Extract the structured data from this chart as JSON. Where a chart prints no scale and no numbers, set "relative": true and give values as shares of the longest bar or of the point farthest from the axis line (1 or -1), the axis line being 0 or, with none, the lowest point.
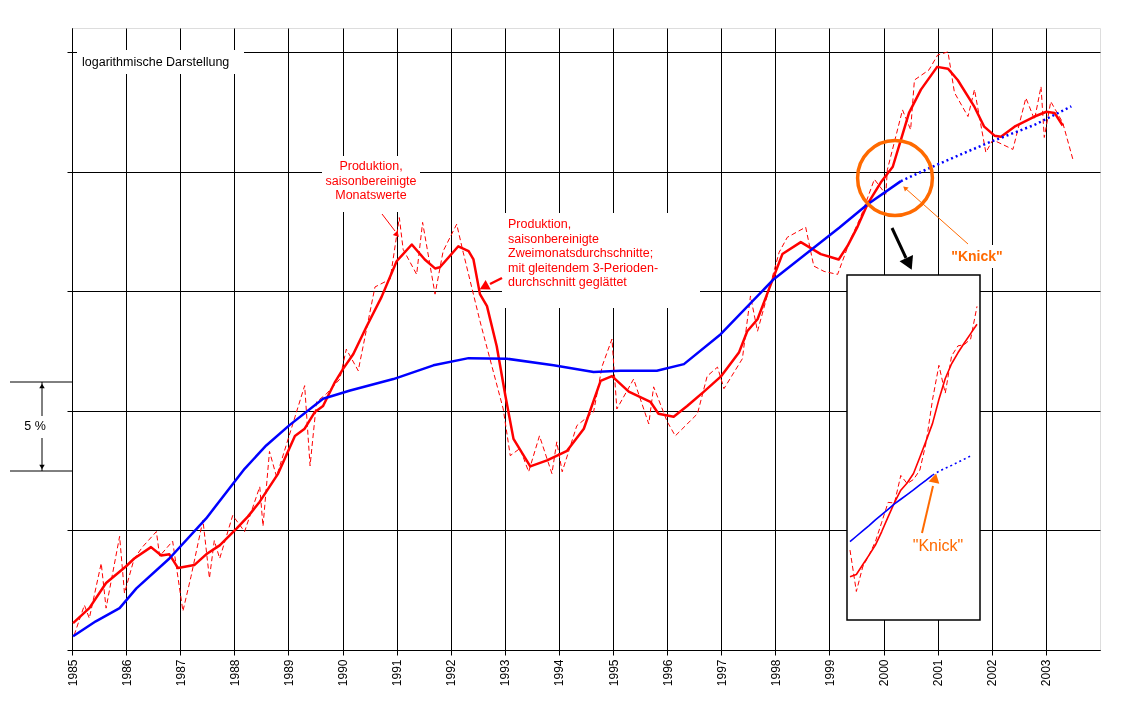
{
  "chart_data": [
    {
      "type": "line",
      "relative": true,
      "xlim": [
        1985,
        2004
      ],
      "xticks": [
        1985,
        1986,
        1987,
        1988,
        1989,
        1990,
        1991,
        1992,
        1993,
        1994,
        1995,
        1996,
        1997,
        1998,
        1999,
        2000,
        2001,
        2002,
        2003
      ],
      "grid": true,
      "tick_labels": "x",
      "annotations": [
        "logarithmische Darstellung",
        "5 %",
        "\"Knick\""
      ],
      "series": [
        {
          "name": "Produktion,\nsaisonbereinigte\nMonatswerte",
          "color": "#ff0000",
          "line_style": "dashed",
          "x": [
            1985.04,
            1985.23,
            1985.32,
            1985.54,
            1985.63,
            1985.88,
            1985.97,
            1986.15,
            1986.31,
            1986.56,
            1986.62,
            1986.86,
            1987.05,
            1987.2,
            1987.42,
            1987.54,
            1987.63,
            1987.73,
            1987.97,
            1988.19,
            1988.47,
            1988.53,
            1988.65,
            1988.78,
            1989.3,
            1989.4,
            1989.52,
            1989.7,
            1989.95,
            1990.07,
            1990.29,
            1990.6,
            1990.88,
            1991.05,
            1991.12,
            1991.37,
            1991.48,
            1991.71,
            1991.86,
            1992.11,
            1992.23,
            1992.54,
            1992.97,
            1993.1,
            1993.28,
            1993.44,
            1993.64,
            1993.87,
            1993.96,
            1994.06,
            1994.33,
            1994.64,
            1994.8,
            1994.98,
            1995.07,
            1995.38,
            1995.66,
            1995.75,
            1996.0,
            1996.15,
            1996.56,
            1996.74,
            1996.93,
            1997.05,
            1997.39,
            1997.54,
            1997.67,
            1998.07,
            1998.22,
            1998.56,
            1998.71,
            1998.9,
            1999.15,
            1999.39,
            1999.58,
            1999.83,
            2000.04,
            2000.07,
            2000.35,
            2000.5,
            2000.57,
            2000.84,
            2001.0,
            2001.19,
            2001.31,
            2001.56,
            2001.68,
            2001.89,
            2002.02,
            2002.39,
            2002.63,
            2002.79,
            2002.91,
            2002.97,
            2003.09,
            2003.31,
            2003.5
          ],
          "values": [
            0.025,
            0.075,
            0.053,
            0.145,
            0.07,
            0.19,
            0.095,
            0.153,
            0.173,
            0.198,
            0.157,
            0.182,
            0.065,
            0.123,
            0.217,
            0.12,
            0.183,
            0.153,
            0.225,
            0.198,
            0.273,
            0.207,
            0.332,
            0.29,
            0.442,
            0.308,
            0.415,
            0.428,
            0.453,
            0.503,
            0.467,
            0.607,
            0.62,
            0.723,
            0.67,
            0.628,
            0.715,
            0.595,
            0.667,
            0.712,
            0.665,
            0.55,
            0.403,
            0.325,
            0.337,
            0.298,
            0.358,
            0.295,
            0.348,
            0.298,
            0.375,
            0.398,
            0.475,
            0.52,
            0.403,
            0.453,
            0.378,
            0.44,
            0.382,
            0.358,
            0.395,
            0.458,
            0.473,
            0.437,
            0.487,
            0.592,
            0.533,
            0.665,
            0.69,
            0.707,
            0.642,
            0.633,
            0.628,
            0.687,
            0.725,
            0.787,
            0.762,
            0.803,
            0.903,
            0.87,
            0.953,
            0.97,
            0.995,
            1.0,
            0.932,
            0.892,
            0.937,
            0.832,
            0.853,
            0.837,
            0.923,
            0.887,
            0.942,
            0.857,
            0.917,
            0.882,
            0.82
          ]
        },
        {
          "name": "Produktion,\nsaisonbereinigte\nZweimonatsdurchschnitte;\nmit gleitendem 3-Perioden-\ndurchschnitt geglättet",
          "color": "#ff0000",
          "line_style": "solid",
          "x": [
            1985.02,
            1985.32,
            1985.63,
            1986.0,
            1986.15,
            1986.46,
            1986.65,
            1986.8,
            1986.96,
            1987.26,
            1987.48,
            1987.73,
            1988.04,
            1988.25,
            1988.47,
            1988.81,
            1989.12,
            1989.3,
            1989.49,
            1989.64,
            1989.86,
            1990.01,
            1990.2,
            1990.44,
            1990.72,
            1991.0,
            1991.28,
            1991.52,
            1991.71,
            1991.8,
            1992.14,
            1992.33,
            1992.42,
            1992.54,
            1992.67,
            1992.85,
            1993.01,
            1993.16,
            1993.47,
            1993.78,
            1994.15,
            1994.46,
            1994.77,
            1994.98,
            1995.29,
            1995.69,
            1995.84,
            1996.12,
            1996.37,
            1996.68,
            1996.99,
            1997.33,
            1997.48,
            1997.67,
            1997.88,
            1998.13,
            1998.47,
            1998.84,
            1999.17,
            1999.33,
            1999.52,
            1999.7,
            1999.95,
            2000.17,
            2000.32,
            2000.47,
            2000.69,
            2000.99,
            2001.19,
            2001.37,
            2001.68,
            2001.86,
            2002.05,
            2002.17,
            2002.42,
            2002.79,
            2003.01,
            2003.16,
            2003.31
          ],
          "values": [
            0.045,
            0.07,
            0.112,
            0.14,
            0.153,
            0.172,
            0.158,
            0.16,
            0.137,
            0.142,
            0.16,
            0.175,
            0.203,
            0.223,
            0.248,
            0.295,
            0.358,
            0.37,
            0.398,
            0.408,
            0.448,
            0.47,
            0.495,
            0.54,
            0.59,
            0.65,
            0.678,
            0.653,
            0.638,
            0.64,
            0.675,
            0.667,
            0.653,
            0.595,
            0.575,
            0.508,
            0.425,
            0.353,
            0.307,
            0.317,
            0.333,
            0.37,
            0.45,
            0.458,
            0.432,
            0.415,
            0.395,
            0.39,
            0.408,
            0.432,
            0.457,
            0.498,
            0.533,
            0.553,
            0.603,
            0.662,
            0.682,
            0.662,
            0.653,
            0.675,
            0.708,
            0.745,
            0.782,
            0.808,
            0.853,
            0.898,
            0.937,
            0.975,
            0.972,
            0.953,
            0.908,
            0.875,
            0.86,
            0.858,
            0.875,
            0.892,
            0.9,
            0.898,
            0.877
          ]
        },
        {
          "color": "#0000ff",
          "line_style": "solid",
          "x": [
            1985.02,
            1985.44,
            1985.88,
            1986.19,
            1986.8,
            1987.48,
            1988.19,
            1988.59,
            1989.02,
            1989.64,
            1990.14,
            1990.94,
            1991.68,
            1992.33,
            1993.04,
            1993.9,
            1994.64,
            1995.14,
            1995.81,
            1996.31,
            1996.99,
            1997.97,
            1999.18,
            1999.7,
            2000.32
          ],
          "values": [
            0.023,
            0.048,
            0.07,
            0.103,
            0.153,
            0.22,
            0.303,
            0.342,
            0.376,
            0.42,
            0.434,
            0.453,
            0.476,
            0.488,
            0.487,
            0.476,
            0.465,
            0.467,
            0.467,
            0.478,
            0.528,
            0.62,
            0.706,
            0.745,
            0.784
          ]
        },
        {
          "color": "#0000ff",
          "line_style": "dotted",
          "x": [
            2000.32,
            2001.0,
            2001.93,
            2002.79,
            2003.47
          ],
          "values": [
            0.784,
            0.812,
            0.848,
            0.878,
            0.909
          ]
        }
      ]
    },
    {
      "type": "line",
      "relative": true,
      "tick_labels": false,
      "categories": [
        null,
        null,
        null,
        null,
        null,
        null,
        null,
        null,
        null,
        null,
        null,
        null,
        null,
        null,
        null,
        null,
        null,
        null,
        null,
        null,
        null
      ],
      "annotations": [
        "\"Knick\""
      ],
      "series": [
        {
          "color": "#ff0000",
          "line_style": "dashed",
          "values": [
            0.223,
            0.091,
            0.169,
            0.207,
            0.25,
            0.312,
            0.375,
            0.373,
            0.461,
            0.435,
            0.448,
            0.478,
            0.567,
            0.703,
            0.812,
            0.723,
            0.842,
            0.874,
            0.878,
            0.896,
            1.0
          ]
        },
        {
          "color": "#ff0000",
          "line_style": "solid",
          "values": [
            0.138,
            0.145,
            0.176,
            0.207,
            0.239,
            0.282,
            0.329,
            0.374,
            0.414,
            0.437,
            0.467,
            0.519,
            0.572,
            0.627,
            0.703,
            0.77,
            0.817,
            0.852,
            0.883,
            0.913,
            0.943
          ]
        },
        {
          "color": "#0000ff",
          "line_style": "solid",
          "values": [
            0.25,
            0.267,
            0.284,
            0.301,
            0.319,
            0.336,
            0.353,
            0.37,
            0.385,
            0.4,
            0.415,
            0.431,
            0.446,
            0.462,
            null,
            null,
            null,
            null,
            null,
            null,
            null
          ]
        },
        {
          "color": "#0000ff",
          "line_style": "dotted",
          "values": [
            null,
            null,
            null,
            null,
            null,
            null,
            null,
            null,
            null,
            null,
            null,
            null,
            null,
            0.462,
            0.474,
            0.484,
            0.493,
            0.503,
            0.513,
            0.523,
            null
          ]
        }
      ]
    }
  ]
}
